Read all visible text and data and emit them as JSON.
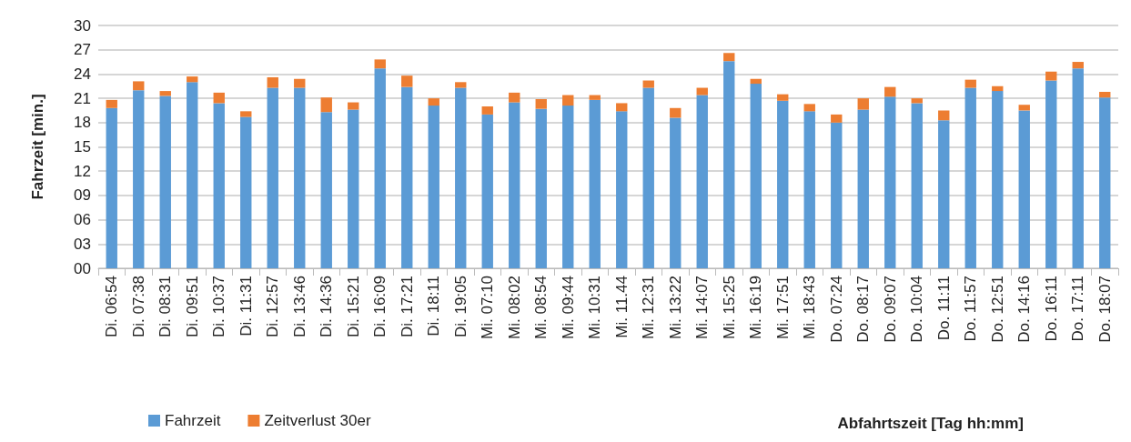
{
  "chart_data": {
    "type": "bar",
    "stacked": true,
    "ylabel": "Fahrzeit [min.]",
    "xlabel": "Abfahrtszeit [Tag hh:mm]",
    "categories": [
      "Di. 06:54",
      "Di. 07:38",
      "Di. 08:31",
      "Di. 09:51",
      "Di. 10:37",
      "Di. 11:31",
      "Di. 12:57",
      "Di. 13:46",
      "Di. 14:36",
      "Di. 15:21",
      "Di. 16:09",
      "Di. 17:21",
      "Di. 18:11",
      "Di. 19:05",
      "Mi. 07:10",
      "Mi. 08:02",
      "Mi. 08:54",
      "Mi. 09:44",
      "Mi. 10:31",
      "Mi. 11.44",
      "Mi. 12:31",
      "Mi. 13:22",
      "Mi. 14:07",
      "Mi. 15:25",
      "Mi. 16:19",
      "Mi. 17:51",
      "Mi. 18:43",
      "Do. 07:24",
      "Do. 08:17",
      "Do. 09:07",
      "Do. 10:04",
      "Do. 11:11",
      "Do. 11:57",
      "Do. 12:51",
      "Do. 14:16",
      "Do. 16:11",
      "Do. 17:11",
      "Do. 18:07"
    ],
    "series": [
      {
        "name": "Fahrzeit",
        "color": "#5b9bd5",
        "values": [
          19.8,
          22.0,
          21.3,
          23.0,
          20.4,
          18.7,
          22.3,
          22.3,
          19.3,
          19.6,
          24.7,
          22.4,
          20.1,
          22.3,
          19.0,
          20.5,
          19.7,
          20.1,
          20.8,
          19.4,
          22.3,
          18.6,
          21.4,
          25.6,
          22.8,
          20.7,
          19.4,
          18.0,
          19.6,
          21.2,
          20.4,
          18.3,
          22.3,
          21.9,
          19.5,
          23.2,
          24.7,
          21.1
        ]
      },
      {
        "name": "Zeitverlust 30er",
        "color": "#ed7d31",
        "values": [
          1.0,
          1.1,
          0.6,
          0.7,
          1.3,
          0.7,
          1.3,
          1.1,
          1.8,
          0.9,
          1.1,
          1.4,
          0.9,
          0.7,
          1.0,
          1.2,
          1.2,
          1.3,
          0.6,
          1.0,
          0.9,
          1.2,
          0.9,
          1.0,
          0.6,
          0.8,
          0.9,
          1.0,
          1.4,
          1.2,
          0.6,
          1.2,
          1.0,
          0.6,
          0.7,
          1.1,
          0.8,
          0.7
        ]
      }
    ],
    "ylim": [
      0,
      30
    ],
    "yticks": [
      {
        "value": 0,
        "label": "00"
      },
      {
        "value": 3,
        "label": "03"
      },
      {
        "value": 6,
        "label": "06"
      },
      {
        "value": 9,
        "label": "09"
      },
      12,
      15,
      18,
      21,
      24,
      27,
      30
    ],
    "grid": "y",
    "legend": "bottom left"
  }
}
